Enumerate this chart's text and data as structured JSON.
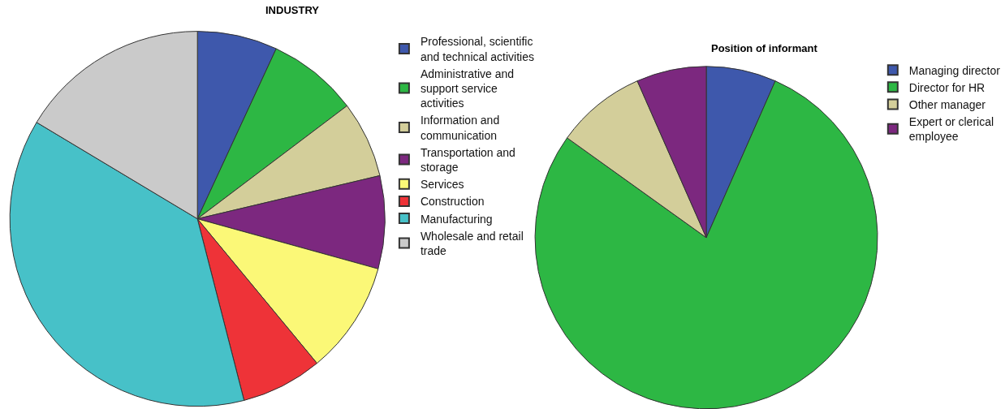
{
  "chart_data": [
    {
      "type": "pie",
      "title": "INDUSTRY",
      "legend": "right",
      "categories": [
        "Professional, scientific and technical activities",
        "Administrative and support service activities",
        "Information and communication",
        "Transportation and storage",
        "Services",
        "Construction",
        "Manufacturing",
        "Wholesale and retail trade"
      ],
      "values": [
        6.9,
        7.8,
        6.6,
        8.0,
        9.7,
        7.0,
        37.6,
        16.4
      ],
      "colors": [
        "#3e58ac",
        "#2db744",
        "#d3ce9a",
        "#7c287f",
        "#fbf877",
        "#ee3338",
        "#47c1c8",
        "#cacaca"
      ]
    },
    {
      "type": "pie",
      "title": "Position of informant",
      "legend": "right",
      "categories": [
        "Managing director",
        "Director for HR",
        "Other manager",
        "Expert or clerical employee"
      ],
      "values": [
        6.6,
        78.3,
        8.5,
        6.6
      ],
      "colors": [
        "#3e58ac",
        "#2db744",
        "#d3ce9a",
        "#7c287f"
      ]
    }
  ]
}
